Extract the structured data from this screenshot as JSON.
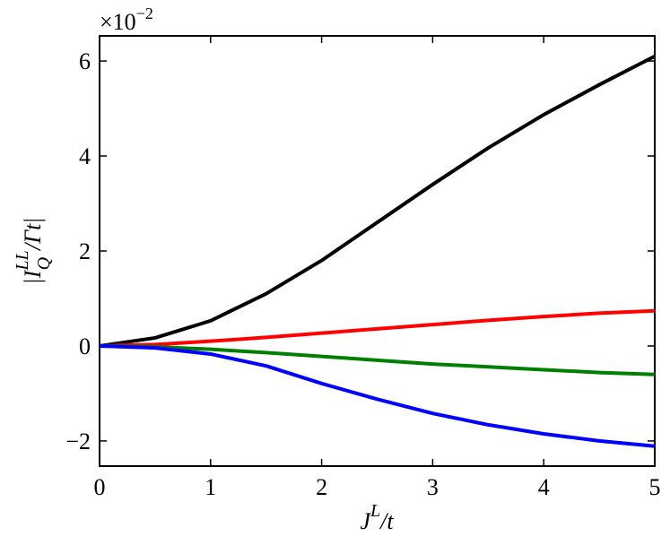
{
  "chart_data": {
    "type": "line",
    "x_label": {
      "base": "J",
      "sup": "L",
      "rest": "/t"
    },
    "y_label": {
      "base": "|I",
      "sup": "LL",
      "sub": "Q",
      "rest": "/Γt|"
    },
    "y_offset": {
      "base": "×10",
      "sup": "−2"
    },
    "x": [
      0,
      0.5,
      1,
      1.5,
      2,
      2.5,
      3,
      3.5,
      4,
      4.5,
      5
    ],
    "series": [
      {
        "color": "#000000",
        "values": [
          0,
          0.17,
          0.53,
          1.1,
          1.8,
          2.6,
          3.4,
          4.17,
          4.87,
          5.5,
          6.1
        ]
      },
      {
        "color": "#ff0000",
        "values": [
          0,
          0.03,
          0.1,
          0.18,
          0.27,
          0.36,
          0.45,
          0.54,
          0.62,
          0.69,
          0.74
        ]
      },
      {
        "color": "#008000",
        "values": [
          0,
          -0.02,
          -0.07,
          -0.14,
          -0.22,
          -0.3,
          -0.38,
          -0.44,
          -0.5,
          -0.56,
          -0.6
        ]
      },
      {
        "color": "#0000ff",
        "values": [
          0,
          -0.04,
          -0.17,
          -0.42,
          -0.79,
          -1.12,
          -1.42,
          -1.66,
          -1.85,
          -2.0,
          -2.11
        ]
      }
    ],
    "xlim": [
      0,
      5
    ],
    "xticks": [
      0,
      1,
      2,
      3,
      4,
      5
    ],
    "ylim": [
      -2.53,
      6.53
    ],
    "yticks": [
      {
        "value": -2,
        "label": "−2"
      },
      0,
      2,
      4,
      6
    ],
    "grid": false
  }
}
